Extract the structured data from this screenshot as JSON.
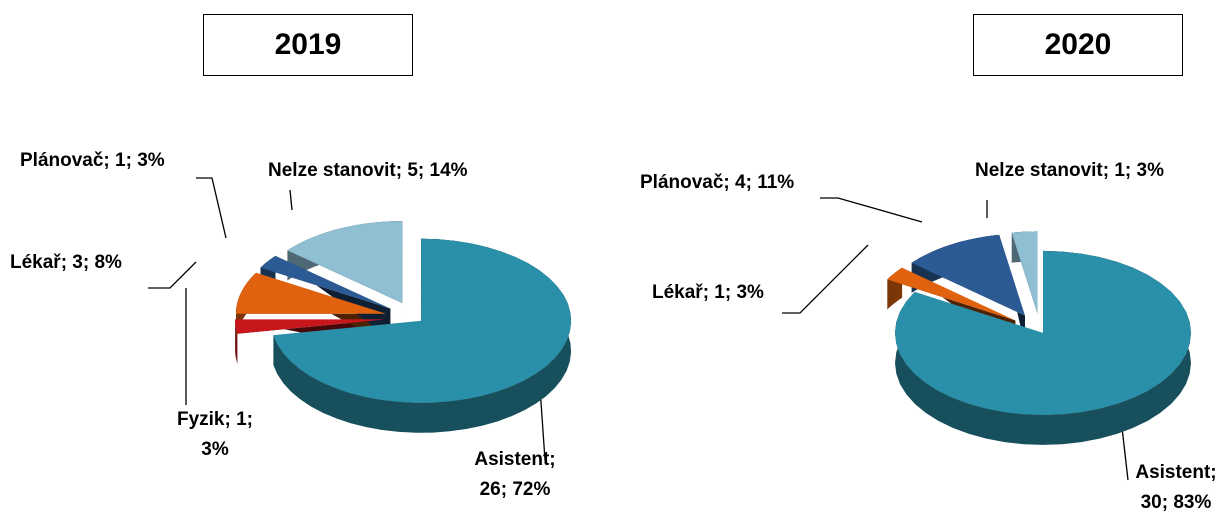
{
  "chart_data": [
    {
      "type": "pie",
      "title": "2019",
      "categories": [
        "Asistent",
        "Fyzik",
        "Lékař",
        "Plánovač",
        "Nelze stanovit"
      ],
      "values": [
        26,
        1,
        3,
        1,
        5
      ],
      "value_labels": [
        "Asistent; 26; 72%",
        "Fyzik; 1; 3%",
        "Lékař; 3; 8%",
        "Plánovač; 1; 3%",
        "Nelze stanovit; 5; 14%"
      ],
      "colors": [
        "#2a8fa8",
        "#c8161d",
        "#e0620f",
        "#2c5a94",
        "#8fbfd2"
      ]
    },
    {
      "type": "pie",
      "title": "2020",
      "categories": [
        "Asistent",
        "Lékař",
        "Plánovač",
        "Nelze stanovit"
      ],
      "values": [
        30,
        1,
        4,
        1
      ],
      "value_labels": [
        "Asistent; 30; 83%",
        "Lékař; 1; 3%",
        "Plánovač; 4; 11%",
        "Nelze stanovit; 1; 3%"
      ],
      "colors": [
        "#2a8fa8",
        "#e0620f",
        "#2c5a94",
        "#8fbfd2"
      ]
    }
  ]
}
